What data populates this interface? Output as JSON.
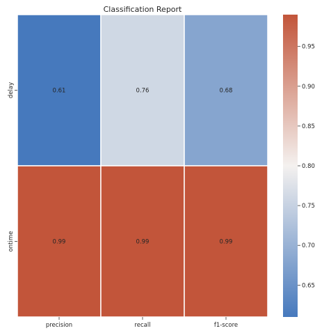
{
  "chart_data": {
    "type": "heatmap",
    "title": "Classification Report",
    "rows": [
      "delay",
      "ontime"
    ],
    "columns": [
      "precision",
      "recall",
      "f1-score"
    ],
    "values": [
      [
        0.61,
        0.76,
        0.68
      ],
      [
        0.99,
        0.99,
        0.99
      ]
    ],
    "value_labels": [
      [
        "0.61",
        "0.76",
        "0.68"
      ],
      [
        "0.99",
        "0.99",
        "0.99"
      ]
    ],
    "colorbar": {
      "range": [
        0.61,
        0.99
      ],
      "ticks": [
        0.65,
        0.7,
        0.75,
        0.8,
        0.85,
        0.9,
        0.95
      ],
      "tick_labels": [
        "0.65",
        "0.70",
        "0.75",
        "0.80",
        "0.85",
        "0.90",
        "0.95"
      ]
    },
    "colors": {
      "low": "#4679bd",
      "mid": "#f4f1ef",
      "high": "#c2553a"
    }
  }
}
